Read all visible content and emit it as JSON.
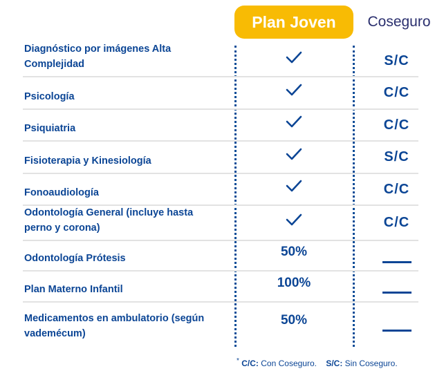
{
  "header": {
    "plan": "Plan Joven",
    "coseguro": "Coseguro"
  },
  "colors": {
    "accent": "#f8bb04",
    "text": "#0b4595"
  },
  "rows": [
    {
      "label": "Diagnóstico por imágenes Alta Complejidad",
      "plan": "check-icon",
      "coseguro": "S/C"
    },
    {
      "label": "Psicología",
      "plan": "check-icon",
      "coseguro": "C/C"
    },
    {
      "label": "Psiquiatria",
      "plan": "check-icon",
      "coseguro": "C/C"
    },
    {
      "label": "Fisioterapia y Kinesiología",
      "plan": "check-icon",
      "coseguro": "S/C"
    },
    {
      "label": "Fonoaudiología",
      "plan": "check-icon",
      "coseguro": "C/C"
    },
    {
      "label": "Odontología General (incluye hasta perno y corona)",
      "plan": "check-icon",
      "coseguro": "C/C"
    },
    {
      "label": "Odontología Prótesis",
      "plan": "50%",
      "coseguro": "dash"
    },
    {
      "label": "Plan Materno Infantil",
      "plan": "100%",
      "coseguro": "dash"
    },
    {
      "label": "Medicamentos en ambulatorio (según vademécum)",
      "plan": "50%",
      "coseguro": "dash"
    }
  ],
  "footer": {
    "star": "*",
    "cc_key": "C/C:",
    "cc_text": " Con Coseguro.",
    "sc_key": "S/C:",
    "sc_text": " Sin Coseguro."
  }
}
